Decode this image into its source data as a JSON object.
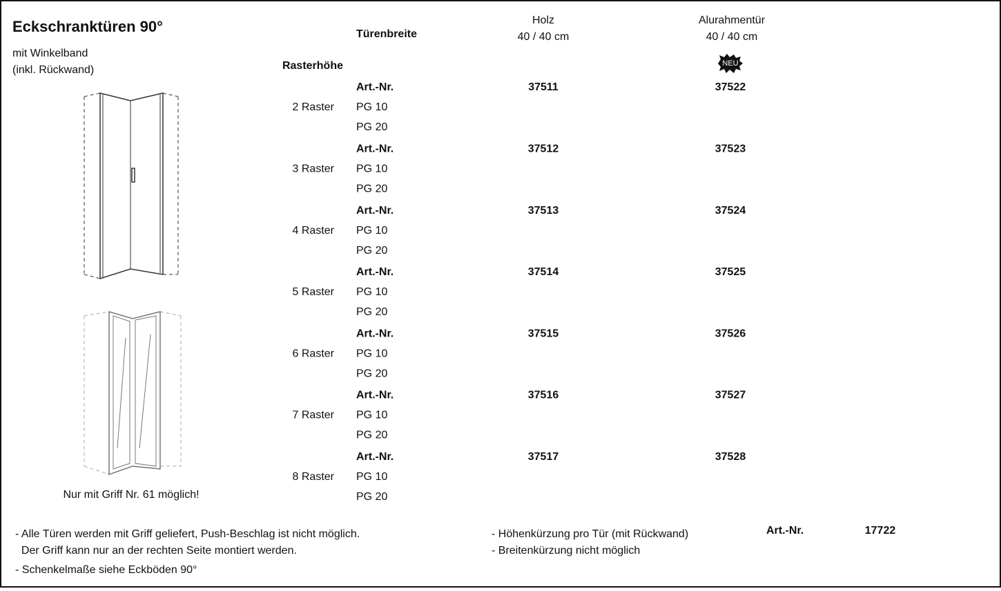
{
  "header": {
    "title": "Eckschranktüren 90°",
    "subtitle_lines": [
      "mit Winkelband",
      "(inkl. Rückwand)"
    ]
  },
  "columns": {
    "width_label": "Türenbreite",
    "height_label": "Rasterhöhe",
    "items": [
      {
        "name": "Holz",
        "size": "40 / 40 cm"
      },
      {
        "name": "Alurahmentür",
        "size": "40 / 40 cm",
        "badge": "NEU"
      }
    ]
  },
  "rows": [
    {
      "height": "2 Raster",
      "art_label": "Art.-Nr.",
      "numbers": [
        "37511",
        "37522"
      ],
      "price_groups": [
        "PG 10",
        "PG 20"
      ]
    },
    {
      "height": "3 Raster",
      "art_label": "Art.-Nr.",
      "numbers": [
        "37512",
        "37523"
      ],
      "price_groups": [
        "PG 10",
        "PG 20"
      ]
    },
    {
      "height": "4 Raster",
      "art_label": "Art.-Nr.",
      "numbers": [
        "37513",
        "37524"
      ],
      "price_groups": [
        "PG 10",
        "PG 20"
      ]
    },
    {
      "height": "5 Raster",
      "art_label": "Art.-Nr.",
      "numbers": [
        "37514",
        "37525"
      ],
      "price_groups": [
        "PG 10",
        "PG 20"
      ]
    },
    {
      "height": "6 Raster",
      "art_label": "Art.-Nr.",
      "numbers": [
        "37515",
        "37526"
      ],
      "price_groups": [
        "PG 10",
        "PG 20"
      ]
    },
    {
      "height": "7 Raster",
      "art_label": "Art.-Nr.",
      "numbers": [
        "37516",
        "37527"
      ],
      "price_groups": [
        "PG 10",
        "PG 20"
      ]
    },
    {
      "height": "8 Raster",
      "art_label": "Art.-Nr.",
      "numbers": [
        "37517",
        "37528"
      ],
      "price_groups": [
        "PG 10",
        "PG 20"
      ]
    }
  ],
  "image_note": "Nur mit Griff Nr. 61 möglich!",
  "notes_left": [
    "- Alle Türen werden mit Griff geliefert, Push-Beschlag ist nicht möglich.",
    "  Der Griff kann nur an der rechten Seite montiert werden.",
    "- Schenkelmaße siehe Eckböden 90°"
  ],
  "notes_right": [
    "- Höhenkürzung pro Tür (mit Rückwand)",
    "- Breitenkürzung nicht möglich"
  ],
  "extra": {
    "art_label": "Art.-Nr.",
    "number": "17722"
  }
}
